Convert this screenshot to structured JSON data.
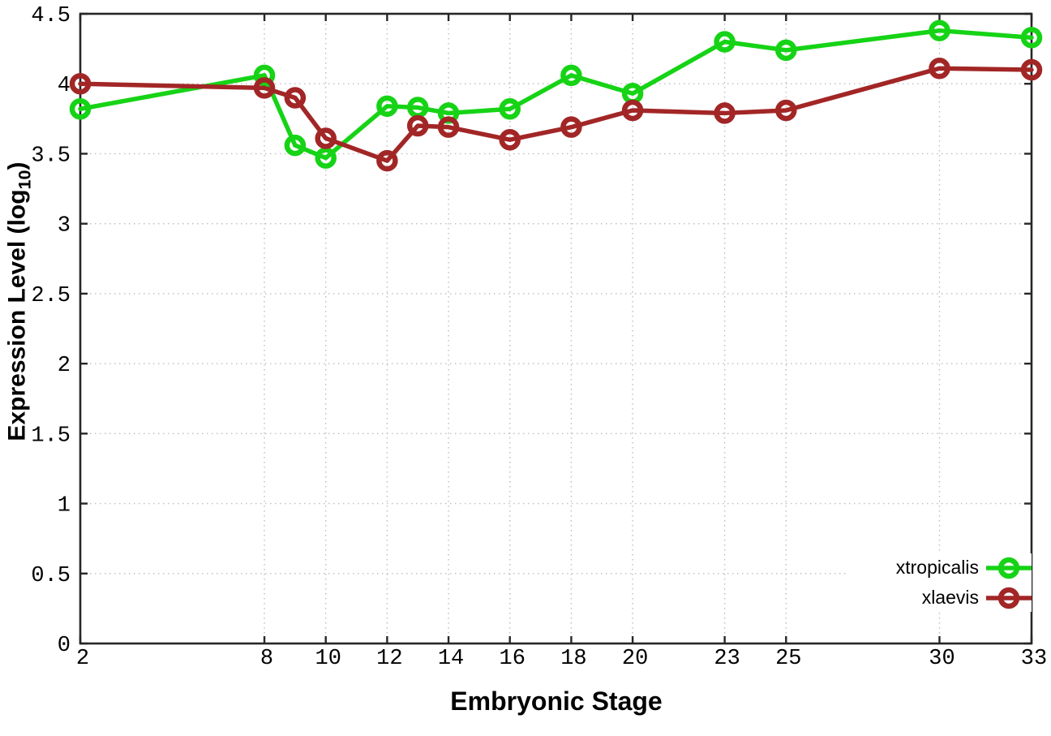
{
  "figure": {
    "background": "#ffffff",
    "axis_color": "#262626",
    "grid_color": "#bdbdbd",
    "tick_label_color": "#000000"
  },
  "labels": {
    "x_title": "Embryonic Stage",
    "y_title_main": "Expression Level (log",
    "y_title_sub": "10",
    "y_title_close": ")"
  },
  "chart_data": {
    "type": "line",
    "title": "",
    "xlabel": "Embryonic Stage",
    "ylabel": "Expression Level (log10)",
    "x": [
      2,
      8,
      9,
      10,
      12,
      13,
      14,
      16,
      18,
      20,
      23,
      25,
      30,
      33
    ],
    "series": [
      {
        "name": "xtropicalis",
        "color": "#16d316",
        "values": [
          3.82,
          4.06,
          3.56,
          3.47,
          3.84,
          3.83,
          3.79,
          3.82,
          4.06,
          3.93,
          4.3,
          4.24,
          4.38,
          4.33
        ]
      },
      {
        "name": "xlaevis",
        "color": "#a22626",
        "values": [
          4.0,
          3.97,
          3.9,
          3.61,
          3.45,
          3.7,
          3.69,
          3.6,
          3.69,
          3.81,
          3.79,
          3.81,
          4.11,
          4.1
        ]
      }
    ],
    "xlim": [
      2,
      33
    ],
    "ylim": [
      0,
      4.5
    ],
    "xticks": [
      2,
      8,
      10,
      12,
      14,
      16,
      18,
      20,
      23,
      25,
      30,
      33
    ],
    "yticks": [
      0,
      0.5,
      1,
      1.5,
      2,
      2.5,
      3,
      3.5,
      4,
      4.5
    ],
    "grid": true,
    "legend_position": "inside bottom right",
    "marker": "open-circle",
    "line_style": "linespoints"
  }
}
